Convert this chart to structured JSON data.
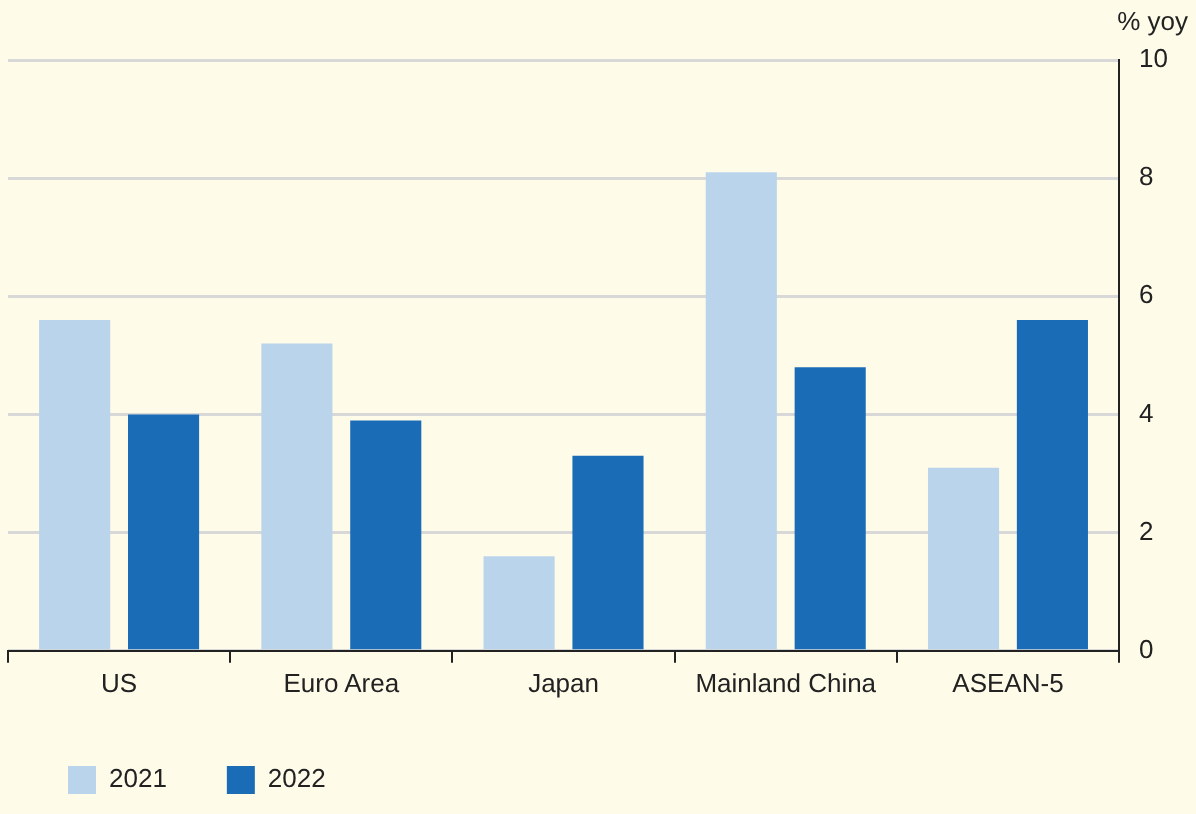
{
  "chart_data": {
    "type": "bar",
    "ylabel": "% yoy",
    "categories": [
      "US",
      "Euro Area",
      "Japan",
      "Mainland China",
      "ASEAN-5"
    ],
    "series": [
      {
        "name": "2021",
        "color": "#bad4eb",
        "values": [
          5.6,
          5.2,
          1.6,
          8.1,
          3.1
        ]
      },
      {
        "name": "2022",
        "color": "#1a6cb6",
        "values": [
          4.0,
          3.9,
          3.3,
          4.8,
          5.6
        ]
      }
    ],
    "ylim": [
      0,
      10
    ],
    "yticks": [
      0,
      2,
      4,
      6,
      8,
      10
    ],
    "grid": "y",
    "legend": "bottom left"
  }
}
